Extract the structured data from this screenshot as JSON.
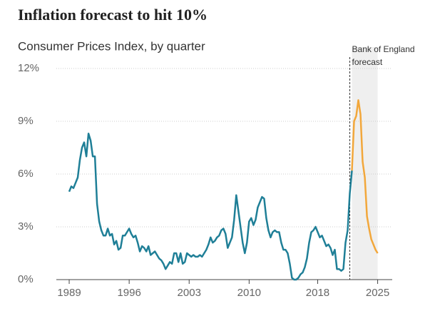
{
  "chart_data": {
    "type": "line",
    "title": "Inflation forecast to hit 10%",
    "subtitle": "Consumer Prices Index, by quarter",
    "annotation": [
      "Bank of England",
      "forecast"
    ],
    "forecast_span": [
      2022,
      2025
    ],
    "forecast_color": "#efefef",
    "xlim": [
      1987.5,
      2026.7
    ],
    "xticks": [
      1989,
      1996,
      2003,
      2010,
      2018,
      2025
    ],
    "ylim": [
      0,
      12
    ],
    "yticks": [
      {
        "value": 0,
        "label": "0%"
      },
      {
        "value": 3,
        "label": "3%"
      },
      {
        "value": 6,
        "label": "6%"
      },
      {
        "value": 9,
        "label": "9%"
      },
      {
        "value": 12,
        "label": "12%"
      }
    ],
    "grid": true,
    "series": [
      {
        "color": "#1f7f97",
        "x": [
          1989,
          1989.25,
          1989.5,
          1989.75,
          1990,
          1990.25,
          1990.5,
          1990.75,
          1991,
          1991.25,
          1991.5,
          1991.75,
          1992,
          1992.25,
          1992.5,
          1992.75,
          1993,
          1993.25,
          1993.5,
          1993.75,
          1994,
          1994.25,
          1994.5,
          1994.75,
          1995,
          1995.25,
          1995.5,
          1995.75,
          1996,
          1996.25,
          1996.5,
          1996.75,
          1997,
          1997.25,
          1997.5,
          1997.75,
          1998,
          1998.25,
          1998.5,
          1998.75,
          1999,
          1999.25,
          1999.5,
          1999.75,
          2000,
          2000.25,
          2000.5,
          2000.75,
          2001,
          2001.25,
          2001.5,
          2001.75,
          2002,
          2002.25,
          2002.5,
          2002.75,
          2003,
          2003.25,
          2003.5,
          2003.75,
          2004,
          2004.25,
          2004.5,
          2004.75,
          2005,
          2005.25,
          2005.5,
          2005.75,
          2006,
          2006.25,
          2006.5,
          2006.75,
          2007,
          2007.25,
          2007.5,
          2007.75,
          2008,
          2008.25,
          2008.5,
          2008.75,
          2009,
          2009.25,
          2009.5,
          2009.75,
          2010,
          2010.25,
          2010.5,
          2010.75,
          2011,
          2011.25,
          2011.5,
          2011.75,
          2012,
          2012.25,
          2012.5,
          2012.75,
          2013,
          2013.25,
          2013.5,
          2013.75,
          2014,
          2014.25,
          2014.5,
          2014.75,
          2015,
          2015.25,
          2015.5,
          2015.75,
          2016,
          2016.25,
          2016.5,
          2016.75,
          2017,
          2017.25,
          2017.5,
          2017.75,
          2018,
          2018.25,
          2018.5,
          2018.75,
          2019,
          2019.25,
          2019.5,
          2019.75,
          2020,
          2020.25,
          2020.5,
          2020.75,
          2021,
          2021.25,
          2021.5,
          2021.75,
          2022
        ],
        "values": [
          5.0,
          5.3,
          5.2,
          5.5,
          5.8,
          6.8,
          7.5,
          7.8,
          7.0,
          8.3,
          7.9,
          7.0,
          7.0,
          4.3,
          3.3,
          2.8,
          2.5,
          2.5,
          2.9,
          2.5,
          2.6,
          2.0,
          2.2,
          1.7,
          1.8,
          2.5,
          2.5,
          2.7,
          2.9,
          2.6,
          2.4,
          2.5,
          2.1,
          1.6,
          1.9,
          1.8,
          1.6,
          1.9,
          1.4,
          1.5,
          1.6,
          1.4,
          1.2,
          1.1,
          0.9,
          0.6,
          0.8,
          1.0,
          0.9,
          1.5,
          1.5,
          1.0,
          1.5,
          0.9,
          1.0,
          1.5,
          1.4,
          1.3,
          1.4,
          1.3,
          1.3,
          1.4,
          1.3,
          1.5,
          1.7,
          2.0,
          2.4,
          2.1,
          2.2,
          2.4,
          2.5,
          2.8,
          2.9,
          2.6,
          1.8,
          2.1,
          2.4,
          3.4,
          4.8,
          3.9,
          3.0,
          2.1,
          1.5,
          2.1,
          3.3,
          3.5,
          3.1,
          3.4,
          4.1,
          4.4,
          4.7,
          4.6,
          3.5,
          2.8,
          2.4,
          2.7,
          2.8,
          2.7,
          2.7,
          2.1,
          1.7,
          1.7,
          1.5,
          0.9,
          0.1,
          0.0,
          0.0,
          0.1,
          0.3,
          0.4,
          0.7,
          1.2,
          2.1,
          2.7,
          2.8,
          3.0,
          2.7,
          2.4,
          2.5,
          2.2,
          1.9,
          2.0,
          1.8,
          1.4,
          1.7,
          0.6,
          0.6,
          0.5,
          0.6,
          2.1,
          2.8,
          4.9,
          6.2
        ]
      },
      {
        "color": "#f2a73b",
        "x": [
          2022,
          2022.25,
          2022.5,
          2022.75,
          2023,
          2023.25,
          2023.5,
          2023.75,
          2024,
          2024.25,
          2024.5,
          2024.75,
          2025
        ],
        "values": [
          6.2,
          9.0,
          9.3,
          10.2,
          9.4,
          6.7,
          5.8,
          3.6,
          2.9,
          2.3,
          2.0,
          1.7,
          1.5
        ]
      }
    ]
  }
}
